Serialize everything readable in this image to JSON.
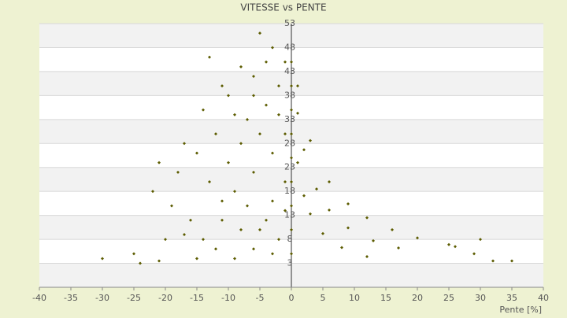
{
  "chart_data": {
    "type": "scatter",
    "title": "VITESSE vs PENTE",
    "x_label": "Pente [%]",
    "color": "#5c5c00",
    "xlim": [
      -40,
      40
    ],
    "xticks": [
      -40,
      -35,
      -30,
      -25,
      -20,
      -15,
      -10,
      -5,
      0,
      5,
      10,
      15,
      20,
      25,
      30,
      35,
      40
    ],
    "ylim": [
      -2,
      53
    ],
    "yticks": [
      3,
      8,
      13,
      18,
      23,
      28,
      33,
      38,
      43,
      48,
      53
    ],
    "x": [
      1,
      2,
      3,
      5,
      8,
      12,
      1,
      2,
      4,
      6,
      9,
      13,
      17,
      1,
      3,
      6,
      9,
      12,
      16,
      20,
      25,
      0,
      0,
      0,
      0,
      0,
      0,
      0,
      0,
      0,
      26,
      29,
      30,
      35,
      32,
      -5,
      -8,
      -13,
      -3,
      -6,
      -10,
      -2,
      -4,
      -7,
      -12,
      -15,
      -18,
      -21,
      -22,
      -19,
      -16,
      -20,
      -25,
      -24,
      -30,
      -21,
      -14,
      -11,
      -9,
      -6,
      -3,
      -1,
      -2,
      -8,
      -5,
      -10,
      -13,
      -7,
      -4,
      -2,
      -6,
      -9,
      -12,
      -15,
      -17,
      -1,
      -3,
      -5,
      -1,
      -4,
      -6,
      -9,
      -11,
      -14,
      -17,
      -8,
      -11,
      -3,
      -1
    ],
    "y": [
      24,
      17.1,
      13.3,
      9.2,
      6.3,
      4.4,
      34.3,
      26.7,
      18.5,
      14.1,
      10.4,
      7.7,
      6.2,
      40,
      28.6,
      20,
      15.4,
      12.5,
      10,
      8.3,
      6.9,
      5,
      10,
      15,
      20,
      25,
      30,
      35,
      40,
      45,
      6.5,
      5,
      8,
      3.5,
      3.5,
      51,
      44,
      46,
      48,
      42,
      38,
      40,
      36,
      33,
      30,
      26,
      22,
      24,
      18,
      15,
      12,
      8,
      5,
      3,
      4,
      3.5,
      8,
      12,
      18,
      22,
      26,
      30,
      34,
      28,
      30,
      24,
      20,
      15,
      12,
      8,
      6,
      4,
      6,
      4,
      9,
      20,
      16,
      10,
      45,
      45,
      38,
      34,
      40,
      35,
      28,
      10,
      16,
      5,
      14
    ]
  }
}
